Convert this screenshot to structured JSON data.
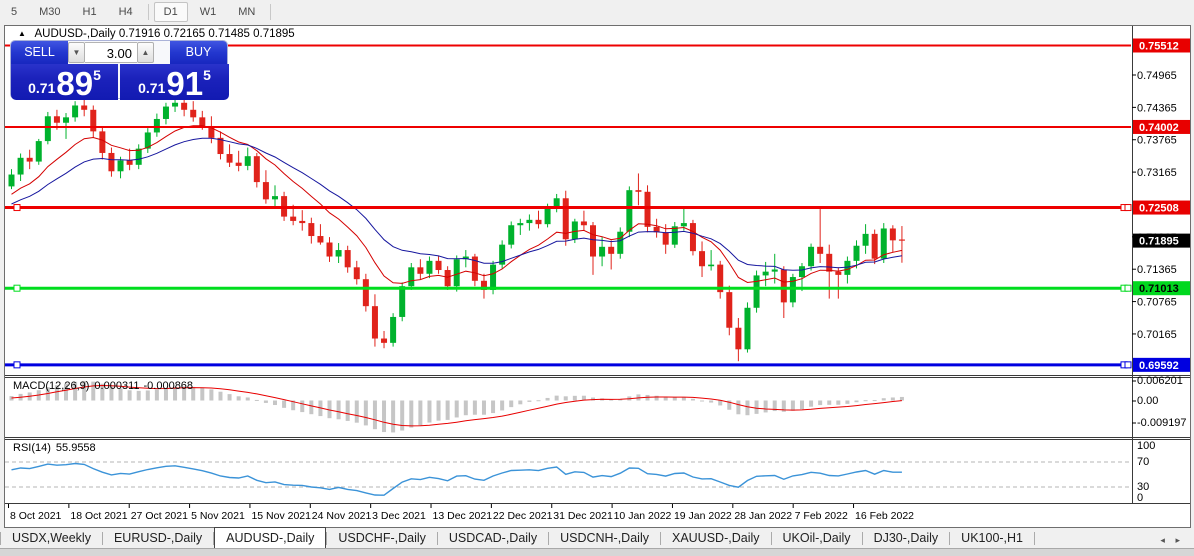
{
  "toolbar": {
    "timeframes": [
      {
        "label": "5",
        "selected": false,
        "sep_before": false
      },
      {
        "label": "M30",
        "selected": false,
        "sep_before": false
      },
      {
        "label": "H1",
        "selected": false,
        "sep_before": false
      },
      {
        "label": "H4",
        "selected": false,
        "sep_before": false
      },
      {
        "label": "D1",
        "selected": true,
        "sep_before": true
      },
      {
        "label": "W1",
        "selected": false,
        "sep_before": false
      },
      {
        "label": "MN",
        "selected": false,
        "sep_before": false
      }
    ]
  },
  "chart": {
    "collapse_arrow": "▲",
    "header_line": "AUDUSD-,Daily  0.71916 0.72165 0.71485 0.71895",
    "trade_panel": {
      "sell_label": "SELL",
      "buy_label": "BUY",
      "volume": "3.00",
      "spinner_down": "▼",
      "spinner_up": "▲",
      "sell_price_prefix": "0.71",
      "sell_price_big": "89",
      "sell_price_sup": "5",
      "buy_price_prefix": "0.71",
      "buy_price_big": "91",
      "buy_price_sup": "5"
    }
  },
  "chart_data": {
    "type": "candlestick",
    "title": "AUDUSD-,Daily",
    "current_ohlc": {
      "open": "0.71916",
      "high": "0.72165",
      "low": "0.71485",
      "close": "0.71895"
    },
    "colors": {
      "up": "#00b22d",
      "down": "#e0231b",
      "ma_fast": "#d40000",
      "ma_slow": "#16169e",
      "macd_hist": "#c6c6c6",
      "macd_signal": "#e80000",
      "rsi": "#3b93d8",
      "level_dash": "#b4b4b4",
      "line_red": "#ee0000",
      "line_green": "#00dd1e",
      "line_blue": "#0000e0"
    },
    "candles": [
      [
        0.729,
        0.7322,
        0.7285,
        0.7312
      ],
      [
        0.7312,
        0.7351,
        0.73,
        0.7343
      ],
      [
        0.7343,
        0.7358,
        0.7322,
        0.7336
      ],
      [
        0.7336,
        0.7378,
        0.733,
        0.7374
      ],
      [
        0.7374,
        0.7428,
        0.7368,
        0.742
      ],
      [
        0.742,
        0.7432,
        0.7395,
        0.7408
      ],
      [
        0.7408,
        0.7426,
        0.7378,
        0.7418
      ],
      [
        0.7418,
        0.7448,
        0.741,
        0.744
      ],
      [
        0.744,
        0.7462,
        0.742,
        0.7432
      ],
      [
        0.7432,
        0.744,
        0.738,
        0.7392
      ],
      [
        0.7392,
        0.74,
        0.734,
        0.7352
      ],
      [
        0.7352,
        0.7362,
        0.7308,
        0.7318
      ],
      [
        0.7318,
        0.7345,
        0.7305,
        0.7338
      ],
      [
        0.7338,
        0.736,
        0.732,
        0.733
      ],
      [
        0.733,
        0.7368,
        0.7322,
        0.736
      ],
      [
        0.736,
        0.7398,
        0.7352,
        0.739
      ],
      [
        0.739,
        0.7425,
        0.7382,
        0.7415
      ],
      [
        0.7415,
        0.7445,
        0.7405,
        0.7438
      ],
      [
        0.7438,
        0.746,
        0.7428,
        0.7445
      ],
      [
        0.7445,
        0.7458,
        0.742,
        0.7432
      ],
      [
        0.7432,
        0.7448,
        0.741,
        0.7418
      ],
      [
        0.7418,
        0.743,
        0.7395,
        0.7402
      ],
      [
        0.7402,
        0.742,
        0.737,
        0.738
      ],
      [
        0.738,
        0.7392,
        0.734,
        0.735
      ],
      [
        0.735,
        0.7368,
        0.7326,
        0.7334
      ],
      [
        0.7334,
        0.7356,
        0.7318,
        0.7328
      ],
      [
        0.7328,
        0.7362,
        0.732,
        0.7346
      ],
      [
        0.7346,
        0.7352,
        0.7288,
        0.7298
      ],
      [
        0.7298,
        0.732,
        0.7258,
        0.7266
      ],
      [
        0.7266,
        0.7292,
        0.725,
        0.7272
      ],
      [
        0.7272,
        0.728,
        0.7226,
        0.7234
      ],
      [
        0.7234,
        0.7256,
        0.7218,
        0.7226
      ],
      [
        0.7226,
        0.7246,
        0.7208,
        0.7222
      ],
      [
        0.7222,
        0.7232,
        0.7184,
        0.7198
      ],
      [
        0.7198,
        0.722,
        0.7182,
        0.7186
      ],
      [
        0.7186,
        0.7196,
        0.715,
        0.716
      ],
      [
        0.716,
        0.7185,
        0.7148,
        0.7172
      ],
      [
        0.7172,
        0.718,
        0.713,
        0.714
      ],
      [
        0.714,
        0.7152,
        0.7108,
        0.7118
      ],
      [
        0.7118,
        0.7128,
        0.7058,
        0.7068
      ],
      [
        0.7068,
        0.709,
        0.6993,
        0.7008
      ],
      [
        0.7008,
        0.7022,
        0.699,
        0.7
      ],
      [
        0.7,
        0.7055,
        0.6993,
        0.7048
      ],
      [
        0.7048,
        0.7112,
        0.704,
        0.7105
      ],
      [
        0.7105,
        0.7148,
        0.7098,
        0.714
      ],
      [
        0.714,
        0.7155,
        0.7118,
        0.7128
      ],
      [
        0.7128,
        0.716,
        0.712,
        0.7152
      ],
      [
        0.7152,
        0.7162,
        0.7128,
        0.7135
      ],
      [
        0.7135,
        0.7142,
        0.7098,
        0.7105
      ],
      [
        0.7105,
        0.7162,
        0.7095,
        0.7155
      ],
      [
        0.7155,
        0.7172,
        0.714,
        0.716
      ],
      [
        0.716,
        0.7165,
        0.7105,
        0.7115
      ],
      [
        0.7115,
        0.7128,
        0.7082,
        0.7098
      ],
      [
        0.7098,
        0.7152,
        0.709,
        0.7145
      ],
      [
        0.7145,
        0.719,
        0.7138,
        0.7182
      ],
      [
        0.7182,
        0.7225,
        0.7175,
        0.7218
      ],
      [
        0.7218,
        0.723,
        0.72,
        0.7222
      ],
      [
        0.7222,
        0.7238,
        0.7208,
        0.7228
      ],
      [
        0.7228,
        0.7245,
        0.7212,
        0.722
      ],
      [
        0.722,
        0.7258,
        0.7214,
        0.725
      ],
      [
        0.725,
        0.7276,
        0.7242,
        0.7268
      ],
      [
        0.7268,
        0.7282,
        0.718,
        0.7192
      ],
      [
        0.7192,
        0.723,
        0.7185,
        0.7225
      ],
      [
        0.7225,
        0.7245,
        0.7208,
        0.7218
      ],
      [
        0.7218,
        0.7224,
        0.7126,
        0.716
      ],
      [
        0.716,
        0.7196,
        0.7142,
        0.7178
      ],
      [
        0.7178,
        0.719,
        0.7136,
        0.7165
      ],
      [
        0.7165,
        0.7214,
        0.7156,
        0.7206
      ],
      [
        0.7206,
        0.729,
        0.7196,
        0.7283
      ],
      [
        0.7283,
        0.7314,
        0.7255,
        0.728
      ],
      [
        0.728,
        0.7292,
        0.7205,
        0.7215
      ],
      [
        0.7215,
        0.723,
        0.7195,
        0.7205
      ],
      [
        0.7205,
        0.722,
        0.7165,
        0.7182
      ],
      [
        0.7182,
        0.7224,
        0.7176,
        0.7216
      ],
      [
        0.7216,
        0.725,
        0.7208,
        0.7222
      ],
      [
        0.7222,
        0.7228,
        0.7162,
        0.717
      ],
      [
        0.717,
        0.7188,
        0.7122,
        0.7142
      ],
      [
        0.7142,
        0.7172,
        0.7134,
        0.7145
      ],
      [
        0.7145,
        0.7152,
        0.7082,
        0.7094
      ],
      [
        0.7094,
        0.7106,
        0.7014,
        0.7028
      ],
      [
        0.7028,
        0.7046,
        0.6966,
        0.6988
      ],
      [
        0.6988,
        0.7075,
        0.6982,
        0.7065
      ],
      [
        0.7065,
        0.7134,
        0.7056,
        0.7125
      ],
      [
        0.7125,
        0.715,
        0.7105,
        0.7132
      ],
      [
        0.7132,
        0.7165,
        0.711,
        0.7136
      ],
      [
        0.7136,
        0.7142,
        0.7046,
        0.7075
      ],
      [
        0.7075,
        0.7128,
        0.7066,
        0.7122
      ],
      [
        0.7122,
        0.7148,
        0.7096,
        0.7142
      ],
      [
        0.7142,
        0.7184,
        0.7134,
        0.7178
      ],
      [
        0.7178,
        0.7248,
        0.7148,
        0.7165
      ],
      [
        0.7165,
        0.7182,
        0.7082,
        0.7132
      ],
      [
        0.7132,
        0.714,
        0.7082,
        0.7126
      ],
      [
        0.7126,
        0.716,
        0.711,
        0.7152
      ],
      [
        0.7152,
        0.719,
        0.7138,
        0.718
      ],
      [
        0.718,
        0.722,
        0.7165,
        0.7202
      ],
      [
        0.7202,
        0.721,
        0.7146,
        0.7156
      ],
      [
        0.7156,
        0.7222,
        0.7148,
        0.7212
      ],
      [
        0.7212,
        0.7218,
        0.7168,
        0.719
      ],
      [
        0.71916,
        0.72165,
        0.71485,
        0.71895
      ]
    ],
    "y_axis_ticks": [
      "0.74965",
      "0.74365",
      "0.73765",
      "0.73165",
      "0.71965",
      "0.71365",
      "0.70765",
      "0.70165"
    ],
    "price_badges": [
      {
        "text": "0.75512",
        "price": 0.75512,
        "bg": "#e80000",
        "fg": "#ffffff",
        "handle": false
      },
      {
        "text": "0.74002",
        "price": 0.74002,
        "bg": "#e80000",
        "fg": "#ffffff",
        "handle": false
      },
      {
        "text": "0.72508",
        "price": 0.72508,
        "bg": "#e80000",
        "fg": "#ffffff",
        "handle": true
      },
      {
        "text": "0.71895",
        "price": 0.71895,
        "bg": "#000000",
        "fg": "#ffffff",
        "handle": false
      },
      {
        "text": "0.71013",
        "price": 0.71013,
        "bg": "#00d81e",
        "fg": "#000000",
        "handle": true
      },
      {
        "text": "0.69592",
        "price": 0.69592,
        "bg": "#0000e0",
        "fg": "#ffffff",
        "handle": true
      }
    ],
    "hlines": [
      {
        "price": 0.75512,
        "color": "#ee0000",
        "w": 2,
        "handle": false
      },
      {
        "price": 0.74002,
        "color": "#ee0000",
        "w": 2,
        "handle": false
      },
      {
        "price": 0.72508,
        "color": "#ee0000",
        "w": 3,
        "handle": true
      },
      {
        "price": 0.71013,
        "color": "#00dd1e",
        "w": 3,
        "handle": true
      },
      {
        "price": 0.69592,
        "color": "#0000e0",
        "w": 3,
        "handle": true
      }
    ],
    "x_axis_dates": [
      "8 Oct 2021",
      "18 Oct 2021",
      "27 Oct 2021",
      "5 Nov 2021",
      "15 Nov 2021",
      "24 Nov 2021",
      "3 Dec 2021",
      "13 Dec 2021",
      "22 Dec 2021",
      "31 Dec 2021",
      "10 Jan 2022",
      "19 Jan 2022",
      "28 Jan 2022",
      "7 Feb 2022",
      "16 Feb 2022"
    ],
    "indicators": {
      "macd": {
        "label": "MACD(12,26,9)",
        "value_main": "0.000311",
        "value_signal": "-0.000868",
        "axis_labels": [
          "0.006201",
          "0.00",
          "-0.009197"
        ],
        "fast": 12,
        "slow": 26,
        "signal": 9
      },
      "rsi": {
        "label": "RSI(14)",
        "value": "55.9558",
        "axis_labels": [
          "100",
          "70",
          "30",
          "0"
        ],
        "levels": [
          70,
          30
        ],
        "period": 14
      },
      "ma_fast_period": 11,
      "ma_slow_period": 21
    }
  },
  "tabs": {
    "items": [
      {
        "label": "USDX,Weekly",
        "active": false
      },
      {
        "label": "EURUSD-,Daily",
        "active": false
      },
      {
        "label": "AUDUSD-,Daily",
        "active": true
      },
      {
        "label": "USDCHF-,Daily",
        "active": false
      },
      {
        "label": "USDCAD-,Daily",
        "active": false
      },
      {
        "label": "USDCNH-,Daily",
        "active": false
      },
      {
        "label": "XAUUSD-,Daily",
        "active": false
      },
      {
        "label": "UKOil-,Daily",
        "active": false
      },
      {
        "label": "DJ30-,Daily",
        "active": false
      },
      {
        "label": "UK100-,H1",
        "active": false
      }
    ],
    "scroll_left": "◂",
    "scroll_right": "▸"
  }
}
